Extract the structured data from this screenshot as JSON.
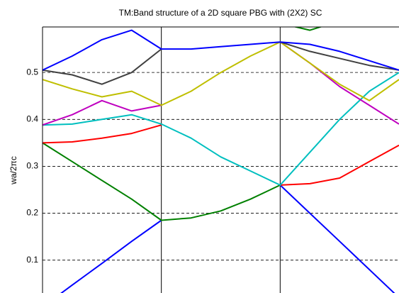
{
  "chart_data": {
    "type": "line",
    "title": "TM:Band structure of a 2D square PBG with (2X2) SC",
    "y_label": "wa/2πc",
    "x": [
      0,
      0.25,
      0.5,
      0.75,
      1,
      1.25,
      1.5,
      1.75,
      2,
      2.25,
      2.5,
      2.75,
      3
    ],
    "xlim": [
      0,
      3
    ],
    "xticks": [
      1,
      2
    ],
    "ylim": [
      0.03,
      0.597
    ],
    "yticks": [
      0.1,
      0.2,
      0.3,
      0.4,
      0.5
    ],
    "grid": true,
    "series": [
      {
        "color": "#0000ff",
        "values": [
          0.0,
          0.047,
          0.093,
          0.14,
          0.185,
          null,
          null,
          null,
          0.26,
          0.2,
          0.14,
          0.08,
          0.02
        ]
      },
      {
        "color": "#008000",
        "values": [
          0.35,
          0.31,
          0.27,
          0.23,
          0.185,
          0.19,
          0.205,
          0.23,
          0.26,
          null,
          null,
          null,
          null
        ]
      },
      {
        "color": "#008000",
        "values": [
          null,
          null,
          null,
          null,
          null,
          null,
          null,
          null,
          0.605,
          0.59,
          0.61,
          null,
          null
        ]
      },
      {
        "color": "#ff0000",
        "values": [
          0.35,
          0.352,
          0.36,
          0.37,
          0.388,
          null,
          null,
          null,
          0.26,
          0.263,
          0.275,
          0.31,
          0.345
        ]
      },
      {
        "color": "#00bfbf",
        "values": [
          0.388,
          0.39,
          0.4,
          0.41,
          0.39,
          0.36,
          0.32,
          0.29,
          0.26,
          0.33,
          0.4,
          0.46,
          0.5
        ]
      },
      {
        "color": "#bf00bf",
        "values": [
          0.388,
          0.41,
          0.44,
          0.418,
          0.43,
          null,
          null,
          null,
          0.565,
          0.52,
          0.47,
          0.43,
          0.39
        ]
      },
      {
        "color": "#bfbf00",
        "values": [
          0.485,
          0.465,
          0.448,
          0.46,
          0.43,
          0.46,
          0.5,
          0.535,
          0.565,
          0.52,
          0.475,
          0.44,
          0.485
        ]
      },
      {
        "color": "#404040",
        "values": [
          0.505,
          0.495,
          0.475,
          0.5,
          0.55,
          null,
          null,
          null,
          0.565,
          0.545,
          0.53,
          0.515,
          0.505
        ]
      },
      {
        "color": "#0000ff",
        "values": [
          0.505,
          0.535,
          0.57,
          0.59,
          0.55,
          0.55,
          0.555,
          0.56,
          0.565,
          0.56,
          0.545,
          0.525,
          0.505
        ]
      }
    ]
  }
}
